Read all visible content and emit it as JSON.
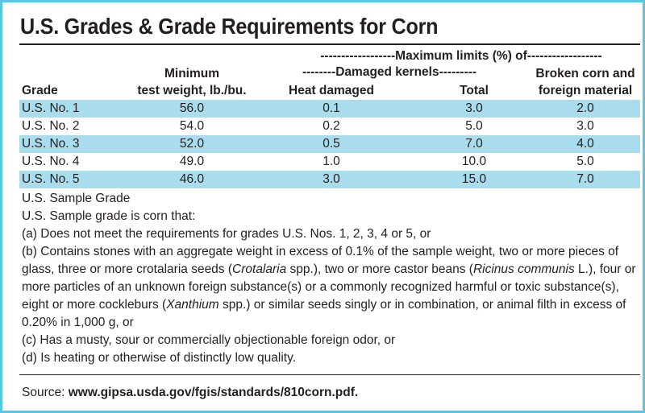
{
  "title": "U.S. Grades & Grade Requirements for Corn",
  "headers": {
    "max_limits": "------------------Maximum limits (%) of------------------",
    "damaged_kernels": "--------Damaged kernels---------",
    "grade": "Grade",
    "min_weight_line1": "Minimum",
    "min_weight_line2": "test weight, lb./bu.",
    "heat_damaged": "Heat damaged",
    "total": "Total",
    "broken_line1": "Broken corn and",
    "broken_line2": "foreign material"
  },
  "rows": [
    {
      "grade": "U.S. No. 1",
      "weight": "56.0",
      "heat": "0.1",
      "total": "3.0",
      "broken": "2.0",
      "shaded": true
    },
    {
      "grade": "U.S. No. 2",
      "weight": "54.0",
      "heat": "0.2",
      "total": "5.0",
      "broken": "3.0",
      "shaded": false
    },
    {
      "grade": "U.S. No. 3",
      "weight": "52.0",
      "heat": "0.5",
      "total": "7.0",
      "broken": "4.0",
      "shaded": true
    },
    {
      "grade": "U.S. No. 4",
      "weight": "49.0",
      "heat": "1.0",
      "total": "10.0",
      "broken": "5.0",
      "shaded": false
    },
    {
      "grade": "U.S. No. 5",
      "weight": "46.0",
      "heat": "3.0",
      "total": "15.0",
      "broken": "7.0",
      "shaded": true
    }
  ],
  "notes": {
    "sample_grade": "U.S. Sample Grade",
    "intro": "U.S. Sample grade is corn that:",
    "a": "(a) Does not meet the requirements for grades U.S. Nos. 1, 2, 3, 4 or 5, or",
    "b_part1": "(b) Contains stones with an aggregate weight in excess of 0.1% of the sample weight, two or more pieces of glass, three or more crotalaria seeds (",
    "b_italic1": "Crotalaria",
    "b_part2": " spp.), two or more castor beans (",
    "b_italic2": "Ricinus communis",
    "b_part3": " L.), four or more particles of an unknown foreign substance(s) or a commonly recognized harmful or toxic substance(s), eight or more cockleburs (",
    "b_italic3": "Xanthium",
    "b_part4": " spp.) or similar seeds singly or in combination, or animal filth in excess of 0.20% in 1,000 g, or",
    "c": "(c) Has a musty, sour or commercially objectionable foreign odor, or",
    "d": "(d) Is heating or otherwise of distinctly low quality."
  },
  "source": {
    "label": "Source:",
    "url": "www.gipsa.usda.gov/fgis/standards/810corn.pdf."
  },
  "colors": {
    "border": "#5cc5de",
    "row_shade": "#a9dcec",
    "text": "#231f20"
  }
}
